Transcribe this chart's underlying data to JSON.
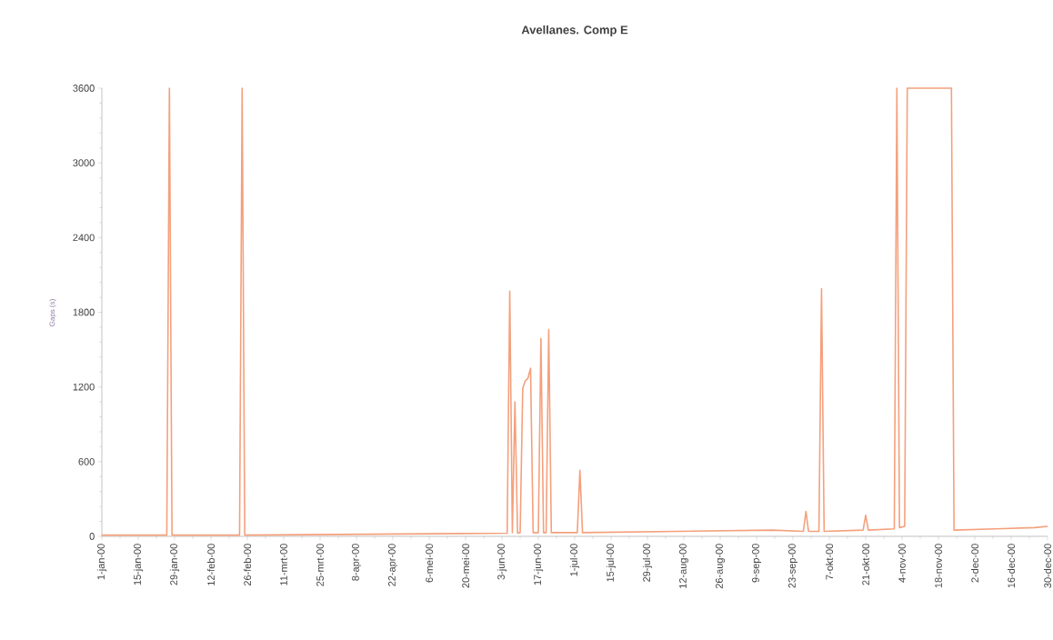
{
  "chart_data": {
    "type": "line",
    "title": "Avellanes. Comp E",
    "ylabel": "Gaps (s)",
    "x": [
      "2000-01-01",
      "2000-01-26",
      "2000-01-27",
      "2000-01-28",
      "2000-02-23",
      "2000-02-24",
      "2000-02-25",
      "2000-06-05",
      "2000-06-06",
      "2000-06-07",
      "2000-06-08",
      "2000-06-09",
      "2000-06-10",
      "2000-06-11",
      "2000-06-12",
      "2000-06-13",
      "2000-06-14",
      "2000-06-15",
      "2000-06-17",
      "2000-06-18",
      "2000-06-19",
      "2000-06-20",
      "2000-06-21",
      "2000-06-22",
      "2000-07-02",
      "2000-07-03",
      "2000-07-04",
      "2000-09-15",
      "2000-09-27",
      "2000-09-28",
      "2000-09-29",
      "2000-10-03",
      "2000-10-04",
      "2000-10-05",
      "2000-10-20",
      "2000-10-21",
      "2000-10-22",
      "2000-11-01",
      "2000-11-02",
      "2000-11-03",
      "2000-11-05",
      "2000-11-06",
      "2000-11-23",
      "2000-11-24",
      "2000-12-10",
      "2000-12-25",
      "2000-12-30"
    ],
    "series": [
      {
        "color": "#f4a07c",
        "values": [
          10,
          10,
          3600,
          10,
          10,
          3600,
          10,
          25,
          1970,
          30,
          1080,
          25,
          30,
          1190,
          1250,
          1270,
          1350,
          30,
          30,
          1590,
          30,
          30,
          1660,
          30,
          30,
          530,
          30,
          50,
          40,
          200,
          40,
          40,
          1990,
          40,
          50,
          170,
          50,
          60,
          3600,
          70,
          80,
          3600,
          3600,
          50,
          60,
          70,
          80
        ]
      }
    ],
    "xlim": [
      "2000-01-01",
      "2000-12-30"
    ],
    "xticks": [
      {
        "value": "2000-01-01",
        "label": "1-jan-00"
      },
      {
        "value": "2000-01-15",
        "label": "15-jan-00"
      },
      {
        "value": "2000-01-29",
        "label": "29-jan-00"
      },
      {
        "value": "2000-02-12",
        "label": "12-feb-00"
      },
      {
        "value": "2000-02-26",
        "label": "26-feb-00"
      },
      {
        "value": "2000-03-11",
        "label": "11-mrt-00"
      },
      {
        "value": "2000-03-25",
        "label": "25-mrt-00"
      },
      {
        "value": "2000-04-08",
        "label": "8-apr-00"
      },
      {
        "value": "2000-04-22",
        "label": "22-apr-00"
      },
      {
        "value": "2000-05-06",
        "label": "6-mei-00"
      },
      {
        "value": "2000-05-20",
        "label": "20-mei-00"
      },
      {
        "value": "2000-06-03",
        "label": "3-jun-00"
      },
      {
        "value": "2000-06-17",
        "label": "17-jun-00"
      },
      {
        "value": "2000-07-01",
        "label": "1-jul-00"
      },
      {
        "value": "2000-07-15",
        "label": "15-jul-00"
      },
      {
        "value": "2000-07-29",
        "label": "29-jul-00"
      },
      {
        "value": "2000-08-12",
        "label": "12-aug-00"
      },
      {
        "value": "2000-08-26",
        "label": "26-aug-00"
      },
      {
        "value": "2000-09-09",
        "label": "9-sep-00"
      },
      {
        "value": "2000-09-23",
        "label": "23-sep-00"
      },
      {
        "value": "2000-10-07",
        "label": "7-okt-00"
      },
      {
        "value": "2000-10-21",
        "label": "21-okt-00"
      },
      {
        "value": "2000-11-04",
        "label": "4-nov-00"
      },
      {
        "value": "2000-11-18",
        "label": "18-nov-00"
      },
      {
        "value": "2000-12-02",
        "label": "2-dec-00"
      },
      {
        "value": "2000-12-16",
        "label": "16-dec-00"
      },
      {
        "value": "2000-12-30",
        "label": "30-dec-00"
      }
    ],
    "ylim": [
      0,
      3600
    ],
    "yticks": [
      0,
      600,
      1200,
      1800,
      2400,
      3000,
      3600
    ]
  }
}
